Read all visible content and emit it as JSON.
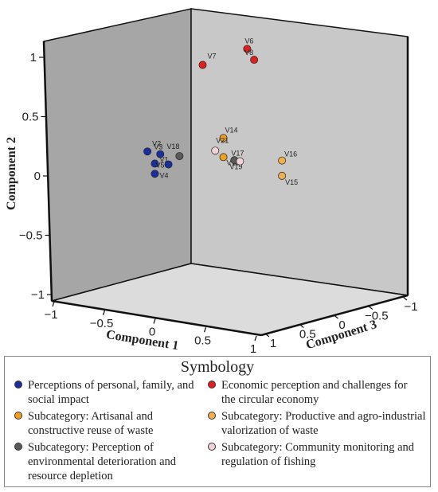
{
  "chart_data": {
    "type": "scatter",
    "projection": "3d",
    "axes": {
      "component_1": {
        "label": "Component 1",
        "range": [
          -1,
          1
        ],
        "ticks": [
          "−1",
          "−0.5",
          "0",
          "0.5",
          "1"
        ]
      },
      "component_2": {
        "label": "Component 2",
        "range": [
          -1,
          1
        ],
        "ticks": [
          "−1",
          "−0.5",
          "0",
          "0.5",
          "1"
        ]
      },
      "component_3": {
        "label": "Component 3",
        "range": [
          -1,
          1
        ],
        "ticks": [
          "1",
          "0.5",
          "0",
          "−0.5",
          "−1"
        ]
      }
    },
    "series": [
      {
        "name": "Perceptions of personal, family, and social impact",
        "color": "#1a2e9c",
        "points": [
          {
            "label": "V1",
            "c1": -0.22,
            "c2": 0.02,
            "c3": 0.55
          },
          {
            "label": "V2",
            "c1": -0.28,
            "c2": 0.12,
            "c3": 0.58
          },
          {
            "label": "V3",
            "c1": -0.22,
            "c2": 0.1,
            "c3": 0.5
          },
          {
            "label": "V4",
            "c1": -0.22,
            "c2": -0.06,
            "c3": 0.55
          },
          {
            "label": "V5",
            "c1": -0.18,
            "c2": 0.02,
            "c3": 0.45
          }
        ]
      },
      {
        "name": "Economic perception and challenges for the circular economy",
        "color": "#e02020",
        "points": [
          {
            "label": "V6",
            "c1": 0.25,
            "c2": 0.92,
            "c3": 0.0
          },
          {
            "label": "V7",
            "c1": 0.0,
            "c2": 0.8,
            "c3": 0.25
          },
          {
            "label": "V8",
            "c1": 0.35,
            "c2": 0.82,
            "c3": 0.0
          }
        ]
      },
      {
        "name": "Subcategory: Artisanal and constructive reuse of waste",
        "color": "#f0a020",
        "points": [
          {
            "label": "V13",
            "c1": 0.22,
            "c2": 0.05,
            "c3": 0.2
          },
          {
            "label": "V14",
            "c1": 0.22,
            "c2": 0.2,
            "c3": 0.2
          }
        ]
      },
      {
        "name": "Subcategory: Productive and agro-industrial valorization of waste",
        "color": "#f0b050",
        "points": [
          {
            "label": "V15",
            "c1": 0.75,
            "c2": -0.15,
            "c3": 0.0
          },
          {
            "label": "V16",
            "c1": 0.75,
            "c2": -0.03,
            "c3": 0.0
          }
        ]
      },
      {
        "name": "Subcategory: Perception of environmental deterioration and resource depletion",
        "color": "#5a5a5a",
        "points": [
          {
            "label": "V18",
            "c1": -0.1,
            "c2": 0.08,
            "c3": 0.4
          },
          {
            "label": "V19",
            "c1": 0.3,
            "c2": 0.02,
            "c3": 0.15
          }
        ]
      },
      {
        "name": "Subcategory: Community monitoring and regulation of fishing",
        "color": "#f2d4d8",
        "points": [
          {
            "label": "V17",
            "c1": 0.38,
            "c2": 0.0,
            "c3": 0.15
          },
          {
            "label": "V21",
            "c1": 0.18,
            "c2": 0.1,
            "c3": 0.25
          }
        ]
      }
    ]
  },
  "legend": {
    "title": "Symbology",
    "items": [
      {
        "text": "Perceptions of personal, family, and social impact",
        "color": "#1a2e9c"
      },
      {
        "text": "Economic perception and challenges for the circular economy",
        "color": "#e02020"
      },
      {
        "text": "Subcategory: Artisanal and constructive reuse of waste",
        "color": "#f0a020"
      },
      {
        "text": "Subcategory: Productive and agro-industrial valorization of waste",
        "color": "#f0b050"
      },
      {
        "text": "Subcategory: Perception of environmental deterioration and resource depletion",
        "color": "#5a5a5a"
      },
      {
        "text": "Subcategory: Community monitoring and regulation of fishing",
        "color": "#f2d4d8"
      }
    ]
  }
}
